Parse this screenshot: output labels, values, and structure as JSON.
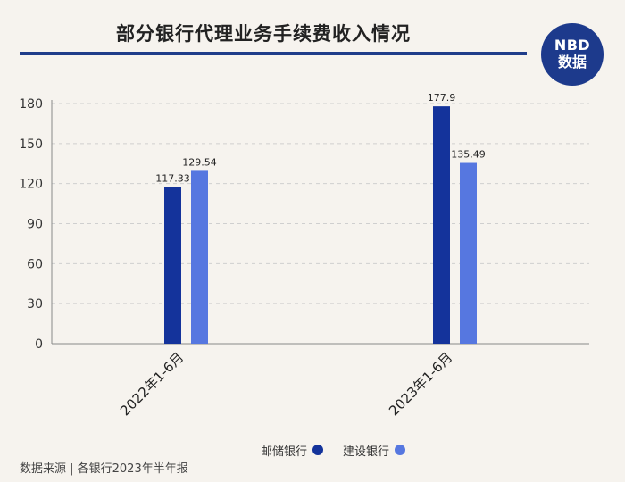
{
  "title": "部分银行代理业务手续费收入情况",
  "logo": {
    "line1": "NBD",
    "line2": "数据"
  },
  "source": "数据来源 | 各银行2023年半年报",
  "colors": {
    "series1": "#14339b",
    "series2": "#5677e0",
    "title_rule": "#1f3d8a"
  },
  "chart_data": {
    "type": "bar",
    "categories": [
      "2022年1-6月",
      "2023年1-6月"
    ],
    "series": [
      {
        "name": "邮储银行",
        "values": [
          117.33,
          177.9
        ],
        "labels": [
          "117.33",
          "177.9"
        ],
        "color": "#14339b"
      },
      {
        "name": "建设银行",
        "values": [
          129.54,
          135.49
        ],
        "labels": [
          "129.54",
          "135.49"
        ],
        "color": "#5677e0"
      }
    ],
    "yticks": [
      "0",
      "30",
      "60",
      "90",
      "120",
      "150",
      "180"
    ],
    "ylim": [
      0,
      180
    ],
    "grid": true,
    "legend": "bottom"
  }
}
